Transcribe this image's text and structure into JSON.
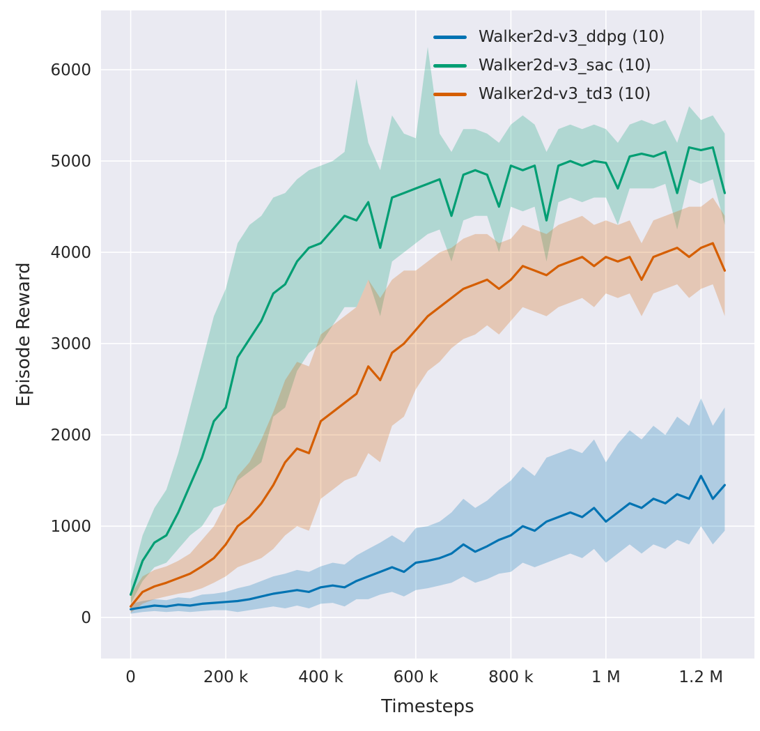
{
  "figure": {
    "background": "#ffffff",
    "plot_background": "#eaeaf2",
    "grid_color": "#ffffff",
    "text_color": "#262626"
  },
  "chart_data": {
    "type": "line",
    "title": "",
    "xlabel": "Timesteps",
    "ylabel": "Episode Reward",
    "grid": true,
    "legend_position": "upper right",
    "xlim": [
      -62500,
      1312500
    ],
    "ylim": [
      -450,
      6650
    ],
    "x_ticks": {
      "values": [
        0,
        200000,
        400000,
        600000,
        800000,
        1000000,
        1200000
      ],
      "labels": [
        "0",
        "200 k",
        "400 k",
        "600 k",
        "800 k",
        "1 M",
        "1.2 M"
      ]
    },
    "y_ticks": {
      "values": [
        0,
        1000,
        2000,
        3000,
        4000,
        5000,
        6000
      ],
      "labels": [
        "0",
        "1000",
        "2000",
        "3000",
        "4000",
        "5000",
        "6000"
      ]
    },
    "x": [
      0,
      25000,
      50000,
      75000,
      100000,
      125000,
      150000,
      175000,
      200000,
      225000,
      250000,
      275000,
      300000,
      325000,
      350000,
      375000,
      400000,
      425000,
      450000,
      475000,
      500000,
      525000,
      550000,
      575000,
      600000,
      625000,
      650000,
      675000,
      700000,
      725000,
      750000,
      775000,
      800000,
      825000,
      850000,
      875000,
      900000,
      925000,
      950000,
      975000,
      1000000,
      1025000,
      1050000,
      1075000,
      1100000,
      1125000,
      1150000,
      1175000,
      1200000,
      1225000,
      1250000
    ],
    "series": [
      {
        "id": "ddpg",
        "name": "Walker2d-v3_ddpg (10)",
        "color": "#0173b2",
        "band_opacity": 0.25,
        "mean": [
          90,
          110,
          130,
          120,
          140,
          130,
          150,
          160,
          170,
          180,
          200,
          230,
          260,
          280,
          300,
          280,
          330,
          350,
          330,
          400,
          450,
          500,
          550,
          500,
          600,
          620,
          650,
          700,
          800,
          720,
          780,
          850,
          900,
          1000,
          950,
          1050,
          1100,
          1150,
          1100,
          1200,
          1050,
          1150,
          1250,
          1200,
          1300,
          1250,
          1350,
          1300,
          1550,
          1300,
          1450
        ],
        "lo": [
          40,
          60,
          70,
          60,
          70,
          60,
          70,
          80,
          80,
          60,
          80,
          100,
          120,
          100,
          130,
          100,
          150,
          160,
          120,
          200,
          200,
          250,
          280,
          230,
          300,
          320,
          350,
          380,
          450,
          380,
          420,
          480,
          500,
          600,
          550,
          600,
          650,
          700,
          650,
          750,
          600,
          700,
          800,
          700,
          800,
          750,
          850,
          800,
          1000,
          800,
          950
        ],
        "hi": [
          150,
          180,
          200,
          190,
          220,
          210,
          250,
          260,
          280,
          320,
          350,
          400,
          450,
          480,
          520,
          500,
          560,
          600,
          580,
          680,
          750,
          820,
          900,
          820,
          980,
          1000,
          1050,
          1150,
          1300,
          1200,
          1280,
          1400,
          1500,
          1650,
          1550,
          1750,
          1800,
          1850,
          1800,
          1950,
          1700,
          1900,
          2050,
          1950,
          2100,
          2000,
          2200,
          2100,
          2400,
          2100,
          2300
        ]
      },
      {
        "id": "sac",
        "name": "Walker2d-v3_sac (10)",
        "color": "#029e73",
        "band_opacity": 0.25,
        "mean": [
          250,
          620,
          820,
          900,
          1150,
          1450,
          1750,
          2150,
          2300,
          2850,
          3050,
          3250,
          3550,
          3650,
          3900,
          4050,
          4100,
          4250,
          4400,
          4350,
          4550,
          4050,
          4600,
          4650,
          4700,
          4750,
          4800,
          4400,
          4850,
          4900,
          4850,
          4500,
          4950,
          4900,
          4950,
          4350,
          4950,
          5000,
          4950,
          5000,
          4980,
          4700,
          5050,
          5080,
          5050,
          5100,
          4650,
          5150,
          5120,
          5150,
          4650
        ],
        "lo": [
          150,
          400,
          550,
          600,
          750,
          900,
          1000,
          1200,
          1250,
          1500,
          1600,
          1700,
          2200,
          2300,
          2700,
          2900,
          3000,
          3200,
          3400,
          3400,
          3700,
          3300,
          3900,
          4000,
          4100,
          4200,
          4250,
          3900,
          4350,
          4400,
          4400,
          4000,
          4500,
          4450,
          4500,
          3900,
          4550,
          4600,
          4550,
          4600,
          4600,
          4300,
          4700,
          4700,
          4700,
          4750,
          4250,
          4800,
          4750,
          4800,
          4300
        ],
        "hi": [
          400,
          900,
          1200,
          1400,
          1800,
          2300,
          2800,
          3300,
          3600,
          4100,
          4300,
          4400,
          4600,
          4650,
          4800,
          4900,
          4950,
          5000,
          5100,
          5900,
          5200,
          4900,
          5500,
          5300,
          5250,
          6250,
          5300,
          5100,
          5350,
          5350,
          5300,
          5200,
          5400,
          5500,
          5400,
          5100,
          5350,
          5400,
          5350,
          5400,
          5350,
          5200,
          5400,
          5450,
          5400,
          5450,
          5200,
          5600,
          5450,
          5500,
          5300
        ]
      },
      {
        "id": "td3",
        "name": "Walker2d-v3_td3 (10)",
        "color": "#d55e00",
        "band_opacity": 0.25,
        "mean": [
          120,
          280,
          340,
          380,
          430,
          480,
          560,
          650,
          800,
          1000,
          1100,
          1250,
          1450,
          1700,
          1850,
          1800,
          2150,
          2250,
          2350,
          2450,
          2750,
          2600,
          2900,
          3000,
          3150,
          3300,
          3400,
          3500,
          3600,
          3650,
          3700,
          3600,
          3700,
          3850,
          3800,
          3750,
          3850,
          3900,
          3950,
          3850,
          3950,
          3900,
          3950,
          3700,
          3950,
          4000,
          4050,
          3950,
          4050,
          4100,
          3800
        ],
        "lo": [
          50,
          150,
          200,
          230,
          260,
          280,
          320,
          380,
          450,
          550,
          600,
          650,
          750,
          900,
          1000,
          950,
          1300,
          1400,
          1500,
          1550,
          1800,
          1700,
          2100,
          2200,
          2500,
          2700,
          2800,
          2950,
          3050,
          3100,
          3200,
          3100,
          3250,
          3400,
          3350,
          3300,
          3400,
          3450,
          3500,
          3400,
          3550,
          3500,
          3550,
          3300,
          3550,
          3600,
          3650,
          3500,
          3600,
          3650,
          3300
        ],
        "hi": [
          250,
          450,
          520,
          560,
          620,
          700,
          850,
          1000,
          1250,
          1550,
          1700,
          1950,
          2250,
          2600,
          2800,
          2750,
          3100,
          3200,
          3300,
          3400,
          3700,
          3500,
          3700,
          3800,
          3800,
          3900,
          4000,
          4050,
          4150,
          4200,
          4200,
          4100,
          4150,
          4300,
          4250,
          4200,
          4300,
          4350,
          4400,
          4300,
          4350,
          4300,
          4350,
          4100,
          4350,
          4400,
          4450,
          4500,
          4500,
          4600,
          4400
        ]
      }
    ]
  }
}
